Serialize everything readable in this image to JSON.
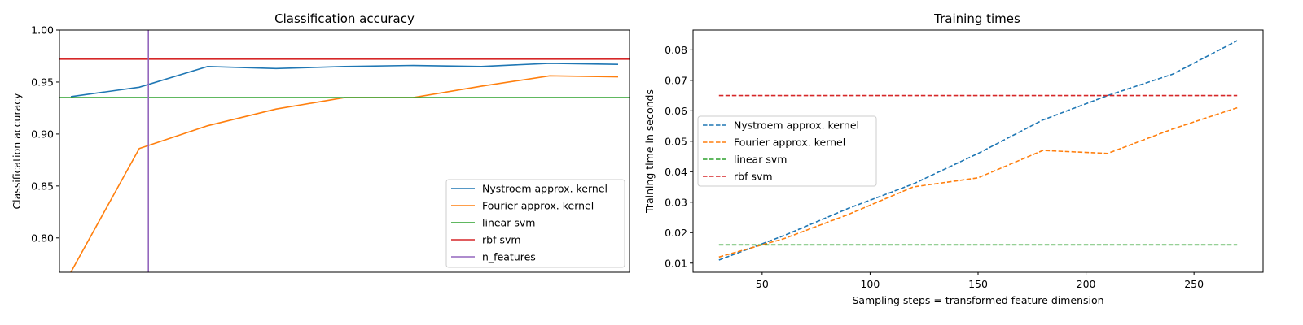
{
  "chart_data": [
    {
      "type": "line",
      "title": "Classification accuracy",
      "xlabel": "",
      "ylabel": "Classification accuracy",
      "xlim": [
        25,
        275
      ],
      "ylim": [
        0.767,
        1.0
      ],
      "x_ticks_visible": false,
      "yticks": [
        0.8,
        0.85,
        0.9,
        0.95,
        1.0
      ],
      "ytick_labels": [
        "0.80",
        "0.85",
        "0.90",
        "0.95",
        "1.00"
      ],
      "x": [
        30,
        60,
        90,
        120,
        150,
        180,
        210,
        240,
        270
      ],
      "legend_position": "lower-right",
      "series": [
        {
          "name": "Nystroem approx. kernel",
          "style": "solid",
          "color": "#1f77b4",
          "values": [
            0.936,
            0.945,
            0.965,
            0.963,
            0.965,
            0.966,
            0.965,
            0.968,
            0.967
          ]
        },
        {
          "name": "Fourier approx. kernel",
          "style": "solid",
          "color": "#ff7f0e",
          "values": [
            0.767,
            0.886,
            0.908,
            0.924,
            0.935,
            0.935,
            0.946,
            0.956,
            0.955
          ]
        },
        {
          "name": "linear svm",
          "style": "solid",
          "color": "#2ca02c",
          "constant": 0.935
        },
        {
          "name": "rbf svm",
          "style": "solid",
          "color": "#d62728",
          "constant": 0.972
        }
      ],
      "vlines": [
        {
          "name": "n_features",
          "color": "#9467bd",
          "x": 64
        }
      ]
    },
    {
      "type": "line",
      "title": "Training times",
      "xlabel": "Sampling steps = transformed feature dimension",
      "ylabel": "Training time in seconds",
      "xlim": [
        18,
        282
      ],
      "ylim": [
        0.007,
        0.0865
      ],
      "xticks": [
        50,
        100,
        150,
        200,
        250
      ],
      "xtick_labels": [
        "50",
        "100",
        "150",
        "200",
        "250"
      ],
      "yticks": [
        0.01,
        0.02,
        0.03,
        0.04,
        0.05,
        0.06,
        0.07,
        0.08
      ],
      "ytick_labels": [
        "0.01",
        "0.02",
        "0.03",
        "0.04",
        "0.05",
        "0.06",
        "0.07",
        "0.08"
      ],
      "x": [
        30,
        60,
        90,
        120,
        150,
        180,
        210,
        240,
        270
      ],
      "legend_position": "center-left",
      "series": [
        {
          "name": "Nystroem approx. kernel",
          "style": "dashed",
          "color": "#1f77b4",
          "values": [
            0.011,
            0.019,
            0.028,
            0.036,
            0.046,
            0.057,
            0.065,
            0.072,
            0.083
          ]
        },
        {
          "name": "Fourier approx. kernel",
          "style": "dashed",
          "color": "#ff7f0e",
          "values": [
            0.012,
            0.018,
            0.026,
            0.035,
            0.038,
            0.047,
            0.046,
            0.054,
            0.061
          ]
        },
        {
          "name": "linear svm",
          "style": "dashed",
          "color": "#2ca02c",
          "constant": 0.016
        },
        {
          "name": "rbf svm",
          "style": "dashed",
          "color": "#d62728",
          "constant": 0.065
        }
      ]
    }
  ]
}
